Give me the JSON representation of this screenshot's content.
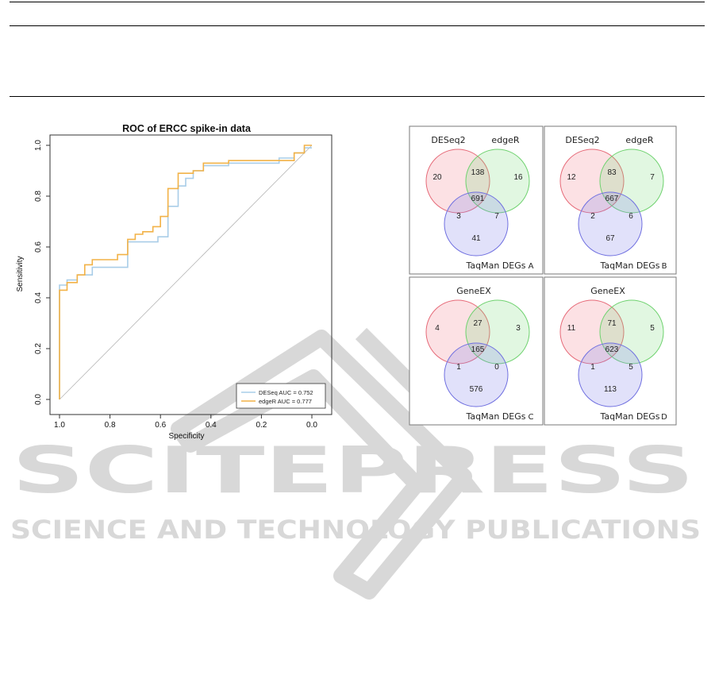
{
  "roc": {
    "title": "ROC of ERCC spike-in data",
    "xlabel": "Specificity",
    "ylabel": "Sensitivity",
    "x_ticks": [
      "1.0",
      "0.8",
      "0.6",
      "0.4",
      "0.2",
      "0.0"
    ],
    "y_ticks": [
      "0.0",
      "0.2",
      "0.4",
      "0.6",
      "0.8",
      "1.0"
    ],
    "legend": [
      "DESeq AUC = 0.752",
      "edgeR AUC = 0.777"
    ],
    "colors": {
      "deseq": "#a9cde8",
      "edger": "#f2b247",
      "diagonal": "#b5b5b5"
    }
  },
  "venn": {
    "panels": [
      {
        "letter": "A",
        "label1": "DESeq2",
        "label2": "edgeR",
        "label3": "TaqMan DEGs",
        "only1": "20",
        "only2": "16",
        "v12": "138",
        "center": "691",
        "v13": "3",
        "v23": "7",
        "only3": "41"
      },
      {
        "letter": "B",
        "label1": "DESeq2",
        "label2": "edgeR",
        "label3": "TaqMan DEGs",
        "only1": "12",
        "only2": "7",
        "v12": "83",
        "center": "667",
        "v13": "2",
        "v23": "6",
        "only3": "67"
      },
      {
        "letter": "C",
        "label1": "GeneEX",
        "label3": "TaqMan DEGs",
        "only1": "4",
        "only2": "3",
        "v12": "27",
        "center": "165",
        "v13": "1",
        "v23": "0",
        "only3": "576"
      },
      {
        "letter": "D",
        "label1": "GeneEX",
        "label3": "TaqMan DEGs",
        "only1": "11",
        "only2": "5",
        "v12": "71",
        "center": "623",
        "v13": "1",
        "v23": "5",
        "only3": "113"
      }
    ]
  },
  "chart_data": {
    "type": "line",
    "title": "ROC of ERCC spike-in data",
    "xlabel": "Specificity",
    "ylabel": "Sensitivity",
    "xlim": [
      1.0,
      0.0
    ],
    "ylim": [
      0.0,
      1.0
    ],
    "legend_position": "bottom-right",
    "series": [
      {
        "name": "DESeq AUC = 0.752",
        "x": [
          1.0,
          1.0,
          0.97,
          0.97,
          0.93,
          0.93,
          0.87,
          0.87,
          0.73,
          0.73,
          0.61,
          0.61,
          0.57,
          0.57,
          0.53,
          0.53,
          0.5,
          0.5,
          0.47,
          0.47,
          0.43,
          0.43,
          0.33,
          0.33,
          0.13,
          0.13,
          0.07,
          0.07,
          0.03,
          0.03,
          0.0
        ],
        "y": [
          0.0,
          0.45,
          0.45,
          0.47,
          0.47,
          0.49,
          0.49,
          0.52,
          0.52,
          0.62,
          0.62,
          0.64,
          0.64,
          0.76,
          0.76,
          0.84,
          0.84,
          0.87,
          0.87,
          0.9,
          0.9,
          0.92,
          0.92,
          0.93,
          0.93,
          0.95,
          0.95,
          0.97,
          0.97,
          0.99,
          0.99
        ]
      },
      {
        "name": "edgeR AUC = 0.777",
        "x": [
          1.0,
          1.0,
          0.97,
          0.97,
          0.93,
          0.93,
          0.9,
          0.9,
          0.87,
          0.87,
          0.77,
          0.77,
          0.73,
          0.73,
          0.7,
          0.7,
          0.67,
          0.67,
          0.63,
          0.63,
          0.6,
          0.6,
          0.57,
          0.57,
          0.53,
          0.53,
          0.47,
          0.47,
          0.43,
          0.43,
          0.33,
          0.33,
          0.07,
          0.07,
          0.03,
          0.03,
          0.0
        ],
        "y": [
          0.0,
          0.43,
          0.43,
          0.46,
          0.46,
          0.49,
          0.49,
          0.53,
          0.53,
          0.55,
          0.55,
          0.57,
          0.57,
          0.63,
          0.63,
          0.65,
          0.65,
          0.66,
          0.66,
          0.68,
          0.68,
          0.72,
          0.72,
          0.83,
          0.83,
          0.89,
          0.89,
          0.9,
          0.9,
          0.93,
          0.93,
          0.94,
          0.94,
          0.97,
          0.97,
          1.0,
          1.0
        ]
      }
    ]
  },
  "watermark": {
    "line1": "SCITEPRESS",
    "line2": "SCIENCE AND TECHNOLOGY PUBLICATIONS",
    "color": "#d8d8d8"
  }
}
